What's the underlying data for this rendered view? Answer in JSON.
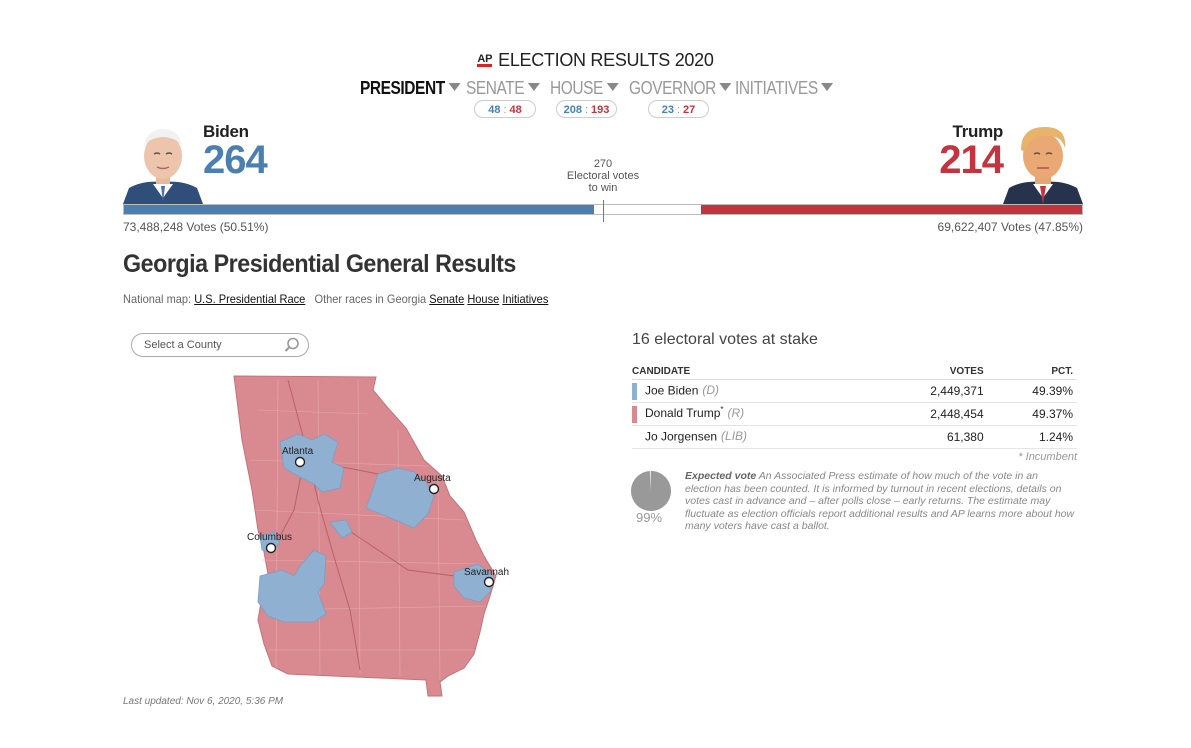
{
  "header": {
    "logo": "AP",
    "title": "ELECTION RESULTS 2020"
  },
  "nav": [
    {
      "label": "PRESIDENT",
      "active": true
    },
    {
      "label": "SENATE"
    },
    {
      "label": "HOUSE"
    },
    {
      "label": "GOVERNOR"
    },
    {
      "label": "INITIATIVES"
    }
  ],
  "balance": {
    "senate": {
      "d": "48",
      "r": "48"
    },
    "house": {
      "d": "208",
      "r": "193"
    },
    "governor": {
      "d": "23",
      "r": "27"
    }
  },
  "biden": {
    "name": "Biden",
    "ev": "264",
    "votes": "73,488,248 Votes (50.51%)"
  },
  "trump": {
    "name": "Trump",
    "ev": "214",
    "votes": "69,622,407 Votes (47.85%)"
  },
  "to_win": {
    "number": "270",
    "line1": "Electoral votes",
    "line2": "to win"
  },
  "ev_bar": {
    "total": 538,
    "biden": 264,
    "trump": 214
  },
  "colors": {
    "dem": "#4a7fb0",
    "rep": "#c2353f",
    "dem_map": "#8fb0d0",
    "rep_map": "#d98a90"
  },
  "page": {
    "title": "Georgia Presidential General Results",
    "national_label": "National map:",
    "national_link": "U.S. Presidential Race",
    "other_label": "Other races in Georgia",
    "links": [
      "Senate",
      "House",
      "Initiatives"
    ]
  },
  "search": {
    "placeholder": "Select a County"
  },
  "map_cities": [
    "Atlanta",
    "Augusta",
    "Columbus",
    "Savannah"
  ],
  "results": {
    "stakes": "16 electoral votes at stake",
    "headers": {
      "candidate": "CANDIDATE",
      "votes": "VOTES",
      "pct": "PCT."
    },
    "rows": [
      {
        "name": "Joe Biden",
        "party": "(D)",
        "votes": "2,449,371",
        "pct": "49.39%"
      },
      {
        "name": "Donald Trump",
        "mark": "*",
        "party": "(R)",
        "votes": "2,448,454",
        "pct": "49.37%"
      },
      {
        "name": "Jo Jorgensen",
        "party": "(LIB)",
        "votes": "61,380",
        "pct": "1.24%"
      }
    ],
    "incumbent_note": "* Incumbent"
  },
  "expected": {
    "pct_value": 0.99,
    "pct_label": "99%",
    "title": "Expected vote",
    "text": "An Associated Press estimate of how much of the vote in an election has been counted. It is informed by turnout in recent elections, details on votes cast in advance and – after polls close – early returns. The estimate may fluctuate as election officials report additional results and AP learns more about how many voters have cast a ballot."
  },
  "updated": "Last updated: Nov 6, 2020, 5:36 PM"
}
